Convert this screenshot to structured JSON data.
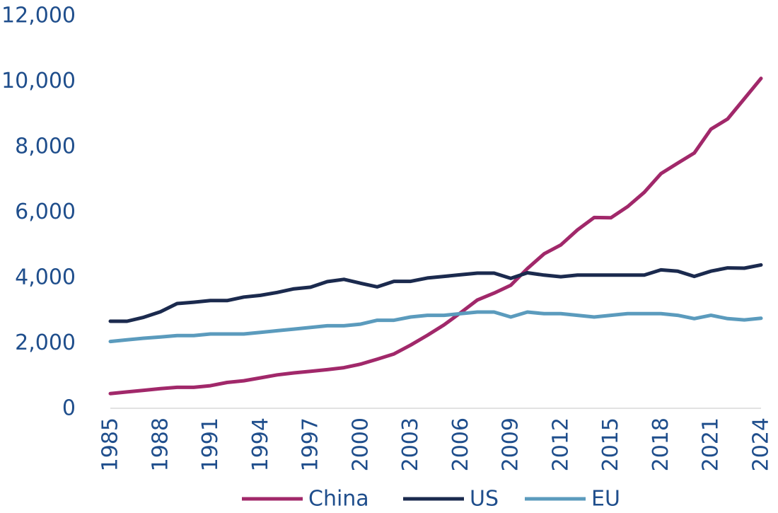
{
  "chart_data": {
    "type": "line",
    "title": "",
    "xlabel": "",
    "ylabel": "",
    "x": [
      1985,
      1986,
      1987,
      1988,
      1989,
      1990,
      1991,
      1992,
      1993,
      1994,
      1995,
      1996,
      1997,
      1998,
      1999,
      2000,
      2001,
      2002,
      2003,
      2004,
      2005,
      2006,
      2007,
      2008,
      2009,
      2010,
      2011,
      2012,
      2013,
      2014,
      2015,
      2016,
      2017,
      2018,
      2019,
      2020,
      2021,
      2022,
      2023,
      2024
    ],
    "xticks": [
      1985,
      1988,
      1991,
      1994,
      1997,
      2000,
      2003,
      2006,
      2009,
      2012,
      2015,
      2018,
      2021,
      2024
    ],
    "xtick_labels": [
      "1985",
      "1988",
      "1991",
      "1994",
      "1997",
      "2000",
      "2003",
      "2006",
      "2009",
      "2012",
      "2015",
      "2018",
      "2021",
      "2024"
    ],
    "ylim": [
      0,
      12000
    ],
    "yticks": [
      0,
      2000,
      4000,
      6000,
      8000,
      10000,
      12000
    ],
    "ytick_labels": [
      "0",
      "2,000",
      "4,000",
      "6,000",
      "8,000",
      "10,000",
      "12,000"
    ],
    "grid": false,
    "legend_position": "bottom",
    "series": [
      {
        "name": "China",
        "color": "#a1286a",
        "values": [
          450,
          500,
          550,
          600,
          640,
          640,
          690,
          790,
          840,
          930,
          1020,
          1080,
          1130,
          1180,
          1240,
          1350,
          1500,
          1660,
          1930,
          2230,
          2550,
          2920,
          3310,
          3520,
          3760,
          4270,
          4720,
          4990,
          5450,
          5830,
          5820,
          6160,
          6600,
          7170,
          7490,
          7800,
          8530,
          8840,
          9460,
          10080
        ]
      },
      {
        "name": "US",
        "color": "#1b2a4e",
        "values": [
          2660,
          2660,
          2780,
          2950,
          3200,
          3240,
          3290,
          3290,
          3400,
          3450,
          3540,
          3650,
          3700,
          3870,
          3940,
          3820,
          3710,
          3880,
          3880,
          3980,
          4030,
          4080,
          4130,
          4130,
          3970,
          4140,
          4070,
          4020,
          4070,
          4070,
          4070,
          4070,
          4070,
          4230,
          4190,
          4030,
          4190,
          4290,
          4280,
          4380
        ]
      },
      {
        "name": "EU",
        "color": "#5b9bbd",
        "values": [
          2040,
          2090,
          2140,
          2180,
          2220,
          2220,
          2270,
          2270,
          2270,
          2320,
          2370,
          2420,
          2470,
          2520,
          2520,
          2570,
          2690,
          2690,
          2790,
          2840,
          2840,
          2890,
          2940,
          2940,
          2790,
          2940,
          2890,
          2890,
          2840,
          2790,
          2840,
          2890,
          2890,
          2890,
          2840,
          2740,
          2840,
          2740,
          2700,
          2750
        ]
      }
    ]
  }
}
